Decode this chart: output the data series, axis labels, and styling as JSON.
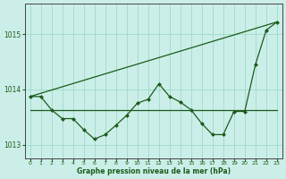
{
  "xlabel": "Graphe pression niveau de la mer (hPa)",
  "xlim": [
    -0.5,
    23.5
  ],
  "ylim": [
    1012.75,
    1015.55
  ],
  "yticks": [
    1013,
    1014,
    1015
  ],
  "xticks": [
    0,
    1,
    2,
    3,
    4,
    5,
    6,
    7,
    8,
    9,
    10,
    11,
    12,
    13,
    14,
    15,
    16,
    17,
    18,
    19,
    20,
    21,
    22,
    23
  ],
  "bg_color": "#cceee8",
  "grid_color": "#99ddcc",
  "line_color": "#1a5c1a",
  "line_diagonal": {
    "x": [
      0,
      23
    ],
    "y": [
      1013.87,
      1015.22
    ]
  },
  "line_flat": {
    "x": [
      0,
      1,
      2,
      3,
      4,
      5,
      6,
      7,
      8,
      9,
      10,
      11,
      12,
      13,
      14,
      15,
      16,
      17,
      18,
      19,
      20,
      21,
      22,
      23
    ],
    "y": [
      1013.63,
      1013.63,
      1013.63,
      1013.63,
      1013.63,
      1013.63,
      1013.63,
      1013.63,
      1013.63,
      1013.63,
      1013.63,
      1013.63,
      1013.63,
      1013.63,
      1013.63,
      1013.63,
      1013.63,
      1013.63,
      1013.63,
      1013.63,
      1013.63,
      1013.63,
      1013.63,
      1013.63
    ]
  },
  "line_wavy": {
    "x": [
      0,
      1,
      2,
      3,
      4,
      5,
      6,
      7,
      8,
      9,
      10,
      11,
      12,
      13,
      14,
      15,
      16,
      17,
      18,
      19,
      20,
      21,
      22,
      23
    ],
    "y": [
      1013.87,
      1013.87,
      1013.63,
      1013.47,
      1013.47,
      1013.27,
      1013.1,
      1013.18,
      1013.35,
      1013.53,
      1013.75,
      1013.82,
      1014.1,
      1013.87,
      1013.77,
      1013.63,
      1013.38,
      1013.18,
      1013.18,
      1013.6,
      1013.6,
      1014.45,
      1015.07,
      1015.22
    ]
  }
}
